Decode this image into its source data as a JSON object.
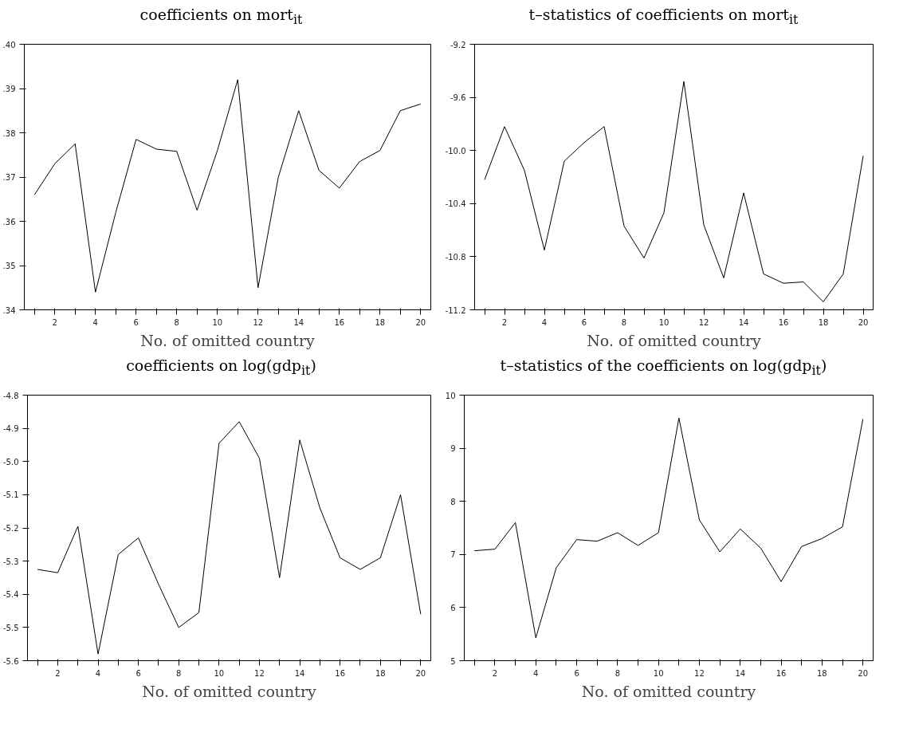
{
  "chart_data": [
    {
      "type": "line",
      "title": "coefficients on mort$_{it}$",
      "xlabel": "No. of omitted country",
      "x": [
        1,
        2,
        3,
        4,
        5,
        6,
        7,
        8,
        9,
        10,
        11,
        12,
        13,
        14,
        15,
        16,
        17,
        18,
        19,
        20
      ],
      "series": [
        {
          "color": "#000000",
          "values": [
            0.366,
            0.373,
            0.3775,
            0.344,
            0.362,
            0.3785,
            0.3763,
            0.3758,
            0.3625,
            0.376,
            0.392,
            0.345,
            0.37,
            0.385,
            0.3715,
            0.3675,
            0.3735,
            0.376,
            0.385,
            0.3865
          ]
        }
      ],
      "xlim": [
        0.5,
        20.5
      ],
      "xticks": [
        {
          "value": 1,
          "label": null
        },
        2,
        {
          "value": 3,
          "label": null
        },
        4,
        {
          "value": 5,
          "label": null
        },
        6,
        {
          "value": 7,
          "label": null
        },
        8,
        {
          "value": 9,
          "label": null
        },
        10,
        {
          "value": 11,
          "label": null
        },
        12,
        {
          "value": 13,
          "label": null
        },
        14,
        {
          "value": 15,
          "label": null
        },
        16,
        {
          "value": 17,
          "label": null
        },
        18,
        {
          "value": 19,
          "label": null
        },
        20
      ],
      "ylim": [
        0.34,
        0.4
      ],
      "yticks": [
        {
          "value": 0.34,
          "label": ".34"
        },
        {
          "value": 0.35,
          "label": ".35"
        },
        {
          "value": 0.36,
          "label": ".36"
        },
        {
          "value": 0.37,
          "label": ".37"
        },
        {
          "value": 0.38,
          "label": ".38"
        },
        {
          "value": 0.39,
          "label": ".39"
        },
        {
          "value": 0.4,
          "label": ".40"
        }
      ],
      "grid": false,
      "line_style": "solid",
      "marker": "none"
    },
    {
      "type": "line",
      "title": "t–statistics of coefficients on mort$_{it}$",
      "xlabel": "No. of omitted country",
      "x": [
        1,
        2,
        3,
        4,
        5,
        6,
        7,
        8,
        9,
        10,
        11,
        12,
        13,
        14,
        15,
        16,
        17,
        18,
        19,
        20
      ],
      "series": [
        {
          "color": "#000000",
          "values": [
            -10.22,
            -9.82,
            -10.15,
            -10.75,
            -10.08,
            -9.94,
            -9.82,
            -10.57,
            -10.81,
            -10.47,
            -9.48,
            -10.56,
            -10.96,
            -10.32,
            -10.93,
            -11.0,
            -10.99,
            -11.14,
            -10.93,
            -10.04
          ]
        }
      ],
      "xlim": [
        0.5,
        20.5
      ],
      "xticks": [
        {
          "value": 1,
          "label": null
        },
        2,
        {
          "value": 3,
          "label": null
        },
        4,
        {
          "value": 5,
          "label": null
        },
        6,
        {
          "value": 7,
          "label": null
        },
        8,
        {
          "value": 9,
          "label": null
        },
        10,
        {
          "value": 11,
          "label": null
        },
        12,
        {
          "value": 13,
          "label": null
        },
        14,
        {
          "value": 15,
          "label": null
        },
        16,
        {
          "value": 17,
          "label": null
        },
        18,
        {
          "value": 19,
          "label": null
        },
        20
      ],
      "ylim": [
        -11.2,
        -9.2
      ],
      "yticks": [
        -11.2,
        -10.8,
        -10.4,
        {
          "value": -10.0,
          "label": "-10.0"
        },
        -9.6,
        -9.2
      ],
      "grid": false,
      "line_style": "solid",
      "marker": "none"
    },
    {
      "type": "line",
      "title": "coefficients on log(gdp$_{it}$)",
      "xlabel": "No. of omitted country",
      "x": [
        1,
        2,
        3,
        4,
        5,
        6,
        7,
        8,
        9,
        10,
        11,
        12,
        13,
        14,
        15,
        16,
        17,
        18,
        19,
        20
      ],
      "series": [
        {
          "color": "#000000",
          "values": [
            -5.325,
            -5.335,
            -5.195,
            -5.58,
            -5.28,
            -5.23,
            -5.37,
            -5.5,
            -5.455,
            -4.945,
            -4.88,
            -4.99,
            -5.35,
            -4.935,
            -5.14,
            -5.29,
            -5.325,
            -5.29,
            -5.1,
            -5.46
          ]
        }
      ],
      "xlim": [
        0.5,
        20.5
      ],
      "xticks": [
        {
          "value": 1,
          "label": null
        },
        2,
        {
          "value": 3,
          "label": null
        },
        4,
        {
          "value": 5,
          "label": null
        },
        6,
        {
          "value": 7,
          "label": null
        },
        8,
        {
          "value": 9,
          "label": null
        },
        10,
        {
          "value": 11,
          "label": null
        },
        12,
        {
          "value": 13,
          "label": null
        },
        14,
        {
          "value": 15,
          "label": null
        },
        16,
        {
          "value": 17,
          "label": null
        },
        18,
        {
          "value": 19,
          "label": null
        },
        20
      ],
      "ylim": [
        -5.6,
        -4.8
      ],
      "yticks": [
        -5.6,
        -5.5,
        -5.4,
        -5.3,
        -5.2,
        -5.1,
        {
          "value": -5.0,
          "label": "-5.0"
        },
        -4.9,
        -4.8
      ],
      "grid": false,
      "line_style": "solid",
      "marker": "none"
    },
    {
      "type": "line",
      "title": "t–statistics of the coefficients on log(gdp$_{it}$)",
      "xlabel": "No. of omitted country",
      "x": [
        1,
        2,
        3,
        4,
        5,
        6,
        7,
        8,
        9,
        10,
        11,
        12,
        13,
        14,
        15,
        16,
        17,
        18,
        19,
        20
      ],
      "series": [
        {
          "color": "#000000",
          "values": [
            7.07,
            7.1,
            7.6,
            5.43,
            6.75,
            7.28,
            7.25,
            7.41,
            7.17,
            7.41,
            9.57,
            7.65,
            7.05,
            7.48,
            7.12,
            6.49,
            7.15,
            7.3,
            7.52,
            9.55
          ]
        }
      ],
      "xlim": [
        0.5,
        20.5
      ],
      "xticks": [
        {
          "value": 1,
          "label": null
        },
        2,
        {
          "value": 3,
          "label": null
        },
        4,
        {
          "value": 5,
          "label": null
        },
        6,
        {
          "value": 7,
          "label": null
        },
        8,
        {
          "value": 9,
          "label": null
        },
        10,
        {
          "value": 11,
          "label": null
        },
        12,
        {
          "value": 13,
          "label": null
        },
        14,
        {
          "value": 15,
          "label": null
        },
        16,
        {
          "value": 17,
          "label": null
        },
        18,
        {
          "value": 19,
          "label": null
        },
        20
      ],
      "ylim": [
        5,
        10
      ],
      "yticks": [
        5,
        6,
        7,
        8,
        9,
        10
      ],
      "grid": false,
      "line_style": "solid",
      "marker": "none"
    }
  ]
}
